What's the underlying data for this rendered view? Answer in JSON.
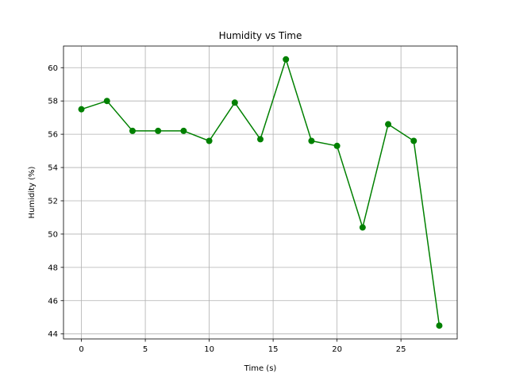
{
  "chart_data": {
    "type": "line",
    "title": "Humidity vs Time",
    "xlabel": "Time (s)",
    "ylabel": "Humidity (%)",
    "xlim": [
      -1.4,
      29.4
    ],
    "ylim": [
      43.7,
      61.3
    ],
    "xticks": [
      0,
      5,
      10,
      15,
      20,
      25
    ],
    "yticks": [
      44,
      46,
      48,
      50,
      52,
      54,
      56,
      58,
      60
    ],
    "grid": true,
    "series": [
      {
        "color": "#008000",
        "marker": "circle",
        "x": [
          0,
          2,
          4,
          6,
          8,
          10,
          12,
          14,
          16,
          18,
          20,
          22,
          24,
          26,
          28
        ],
        "y": [
          57.5,
          58.0,
          56.2,
          56.2,
          56.2,
          55.6,
          57.9,
          55.7,
          60.5,
          55.6,
          55.3,
          50.4,
          56.6,
          55.6,
          44.5
        ]
      }
    ]
  }
}
